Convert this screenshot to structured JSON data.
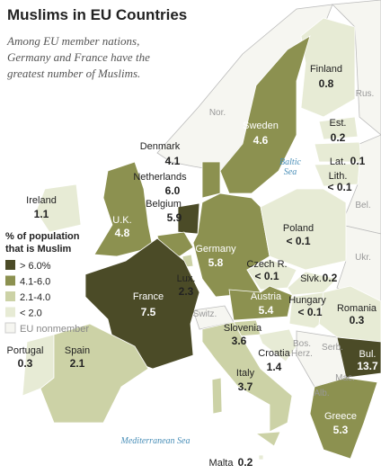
{
  "header": {
    "title": "Muslims in EU Countries",
    "subtitle_lines": [
      "Among EU member nations,",
      "Germany and France have the",
      "greatest number of Muslims."
    ]
  },
  "legend": {
    "title_lines": [
      "% of population",
      "that is Muslim"
    ],
    "items": [
      {
        "label": "> 6.0%",
        "color": "#4b4b27"
      },
      {
        "label": "4.1-6.0",
        "color": "#8c9150"
      },
      {
        "label": "2.1-4.0",
        "color": "#ccd2a6"
      },
      {
        "label": "< 2.0",
        "color": "#e7ebd5"
      },
      {
        "label": "EU nonmember",
        "color": "#f6f6f1"
      }
    ]
  },
  "countries": [
    {
      "name": "Finland",
      "value": "0.8",
      "class": 3
    },
    {
      "name": "Sweden",
      "value": "4.6",
      "class": 1
    },
    {
      "name": "Est.",
      "value": "0.2",
      "class": 3
    },
    {
      "name": "Lat.",
      "value": "0.1",
      "class": 3
    },
    {
      "name": "Lith.",
      "value": "< 0.1",
      "class": 3
    },
    {
      "name": "Denmark",
      "value": "4.1",
      "class": 1
    },
    {
      "name": "Netherlands",
      "value": "6.0",
      "class": 0
    },
    {
      "name": "Belgium",
      "value": "5.9",
      "class": 1
    },
    {
      "name": "Ireland",
      "value": "1.1",
      "class": 3
    },
    {
      "name": "U.K.",
      "value": "4.8",
      "class": 1
    },
    {
      "name": "Germany",
      "value": "5.8",
      "class": 1
    },
    {
      "name": "Poland",
      "value": "< 0.1",
      "class": 3
    },
    {
      "name": "Czech R.",
      "value": "< 0.1",
      "class": 3
    },
    {
      "name": "Slvk.",
      "value": "0.2",
      "class": 3
    },
    {
      "name": "Lux.",
      "value": "2.3",
      "class": 2
    },
    {
      "name": "France",
      "value": "7.5",
      "class": 0
    },
    {
      "name": "Austria",
      "value": "5.4",
      "class": 1
    },
    {
      "name": "Hungary",
      "value": "< 0.1",
      "class": 3
    },
    {
      "name": "Romania",
      "value": "0.3",
      "class": 3
    },
    {
      "name": "Slovenia",
      "value": "3.6",
      "class": 2
    },
    {
      "name": "Croatia",
      "value": "1.4",
      "class": 3
    },
    {
      "name": "Bul.",
      "value": "13.7",
      "class": 0
    },
    {
      "name": "Portugal",
      "value": "0.3",
      "class": 3
    },
    {
      "name": "Spain",
      "value": "2.1",
      "class": 2
    },
    {
      "name": "Italy",
      "value": "3.7",
      "class": 2
    },
    {
      "name": "Greece",
      "value": "5.3",
      "class": 1
    },
    {
      "name": "Malta",
      "value": "0.2",
      "class": 3
    }
  ],
  "other_labels": [
    "Nor.",
    "Rus.",
    "Bel.",
    "Ukr.",
    "Switz.",
    "Serb.",
    "Bos.",
    "Herz.",
    "Mac.",
    "Alb.",
    "Baltic",
    "Sea",
    "Mediterranean Sea"
  ]
}
